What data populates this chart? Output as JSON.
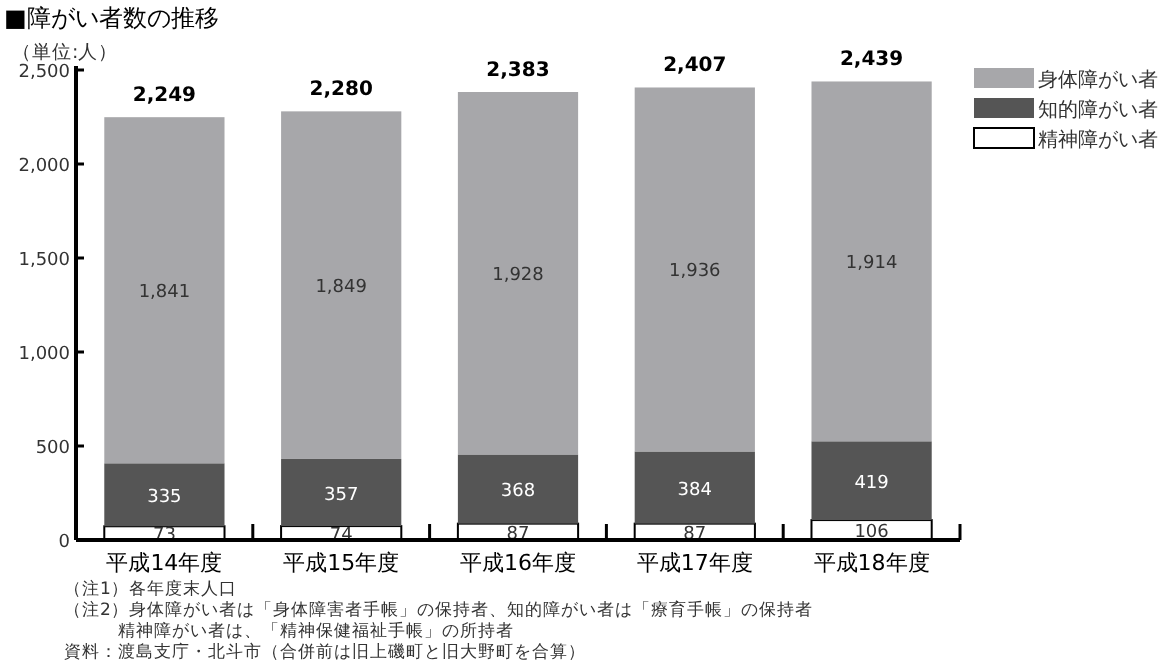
{
  "chart_data": {
    "type": "bar",
    "stacked": true,
    "title": "■障がい者数の推移",
    "ylabel": "（単位:人）",
    "categories": [
      "平成14年度",
      "平成15年度",
      "平成16年度",
      "平成17年度",
      "平成18年度"
    ],
    "series": [
      {
        "name": "精神障がい者",
        "color": "#ffffff",
        "values": [
          73,
          74,
          87,
          87,
          106
        ],
        "value_labels": [
          "73",
          "74",
          "87",
          "87",
          "106"
        ]
      },
      {
        "name": "知的障がい者",
        "color": "#555555",
        "values": [
          335,
          357,
          368,
          384,
          419
        ],
        "value_labels": [
          "335",
          "357",
          "368",
          "384",
          "419"
        ]
      },
      {
        "name": "身体障がい者",
        "color": "#a7a7aa",
        "values": [
          1841,
          1849,
          1928,
          1936,
          1914
        ],
        "value_labels": [
          "1,841",
          "1,849",
          "1,928",
          "1,936",
          "1,914"
        ]
      }
    ],
    "totals": [
      "2,249",
      "2,280",
      "2,383",
      "2,407",
      "2,439"
    ],
    "ylim": [
      0,
      2500
    ],
    "yticks": [
      0,
      500,
      {
        "value": 1000,
        "label": "1,000"
      },
      {
        "value": 1500,
        "label": "1,500"
      },
      {
        "value": 2000,
        "label": "2,000"
      },
      {
        "value": 2500,
        "label": "2,500"
      }
    ],
    "legend": "top right",
    "annotations": [
      "（注1）各年度末人口",
      "（注2）身体障がい者は「身体障害者手帳」の保持者、知的障がい者は「療育手帳」の保持者",
      "　　　精神障がい者は、「精神保健福祉手帳」の所持者",
      "資料：渡島支庁・北斗市（合併前は旧上磯町と旧大野町を合算）"
    ]
  }
}
